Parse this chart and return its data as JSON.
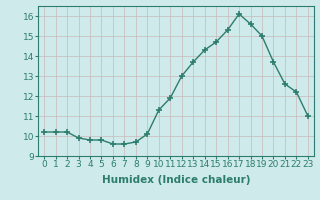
{
  "x": [
    0,
    1,
    2,
    3,
    4,
    5,
    6,
    7,
    8,
    9,
    10,
    11,
    12,
    13,
    14,
    15,
    16,
    17,
    18,
    19,
    20,
    21,
    22,
    23
  ],
  "y": [
    10.2,
    10.2,
    10.2,
    9.9,
    9.8,
    9.8,
    9.6,
    9.6,
    9.7,
    10.1,
    11.3,
    11.9,
    13.0,
    13.7,
    14.3,
    14.7,
    15.3,
    16.1,
    15.6,
    15.0,
    13.7,
    12.6,
    12.2,
    11.0
  ],
  "line_color": "#2d7d6e",
  "marker": "+",
  "markersize": 4,
  "markeredgewidth": 1.2,
  "linewidth": 1.0,
  "xlabel": "Humidex (Indice chaleur)",
  "xlim": [
    -0.5,
    23.5
  ],
  "ylim": [
    9,
    16.5
  ],
  "yticks": [
    9,
    10,
    11,
    12,
    13,
    14,
    15,
    16
  ],
  "xticks": [
    0,
    1,
    2,
    3,
    4,
    5,
    6,
    7,
    8,
    9,
    10,
    11,
    12,
    13,
    14,
    15,
    16,
    17,
    18,
    19,
    20,
    21,
    22,
    23
  ],
  "background_color": "#ceeaea",
  "grid_color": "#c8b8b8",
  "xlabel_fontsize": 7.5,
  "tick_fontsize": 6.5
}
